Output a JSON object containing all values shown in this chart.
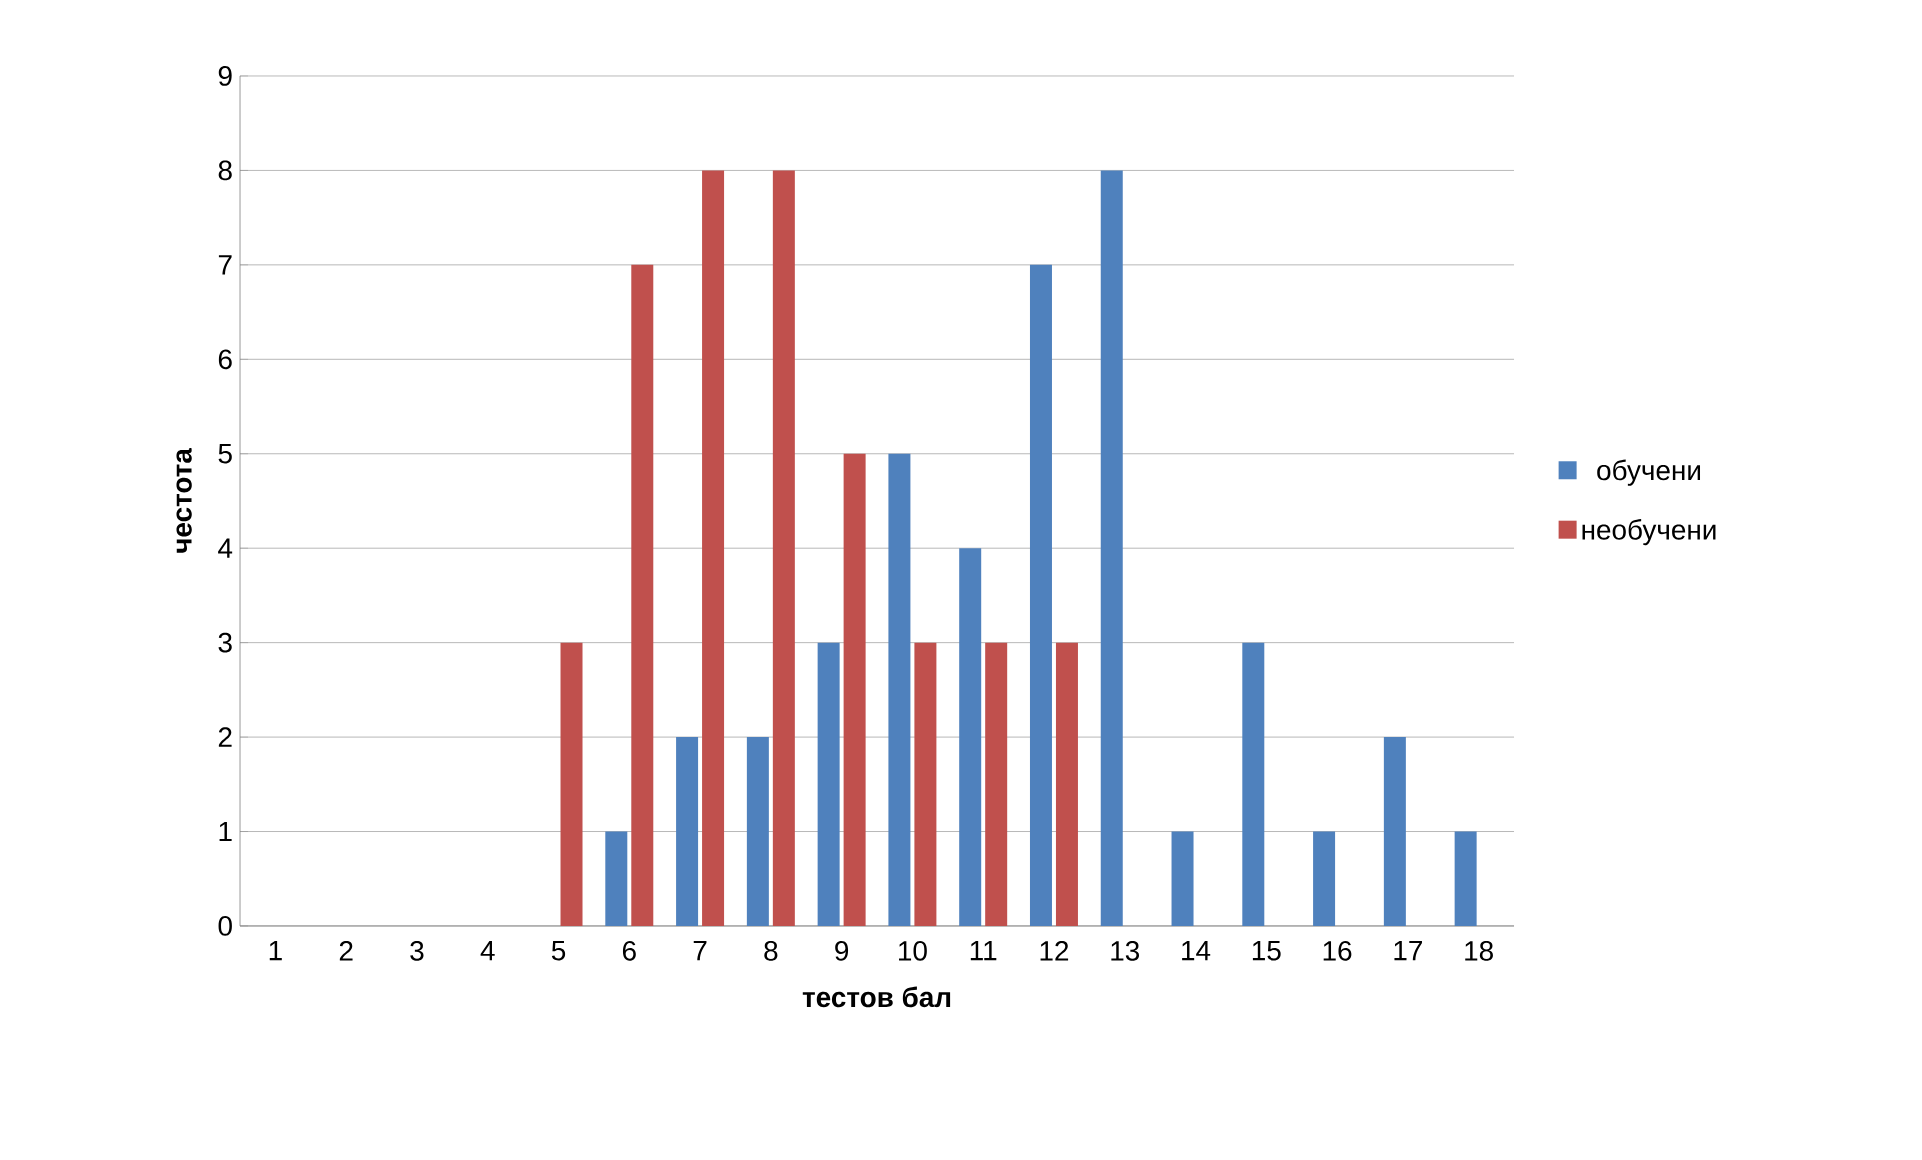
{
  "chart_data": {
    "type": "bar",
    "xlabel": "тестов бал",
    "ylabel": "честота",
    "categories": [
      "1",
      "2",
      "3",
      "4",
      "5",
      "6",
      "7",
      "8",
      "9",
      "10",
      "11",
      "12",
      "13",
      "14",
      "15",
      "16",
      "17",
      "18"
    ],
    "series": [
      {
        "name": "обучени",
        "color": "#4f81bd",
        "values": [
          0,
          0,
          0,
          0,
          0,
          1,
          2,
          2,
          3,
          5,
          4,
          7,
          8,
          1,
          3,
          1,
          2,
          1
        ]
      },
      {
        "name": "необучени",
        "color": "#c0504d",
        "values": [
          0,
          0,
          0,
          0,
          3,
          7,
          8,
          8,
          5,
          3,
          3,
          3,
          0,
          0,
          0,
          0,
          0,
          0
        ]
      }
    ],
    "ylim": [
      0,
      9
    ],
    "yticks": [
      0,
      1,
      2,
      3,
      4,
      5,
      6,
      7,
      8,
      9
    ],
    "grid": "y",
    "legend": "right"
  }
}
